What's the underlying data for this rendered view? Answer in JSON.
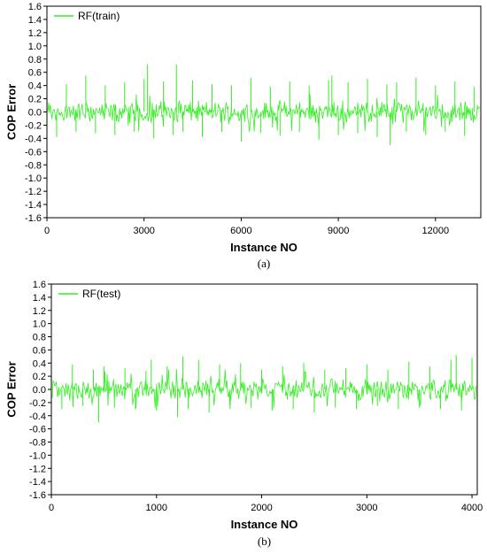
{
  "chart_data": [
    {
      "type": "line",
      "panel_label": "(a)",
      "xlabel": "Instance NO",
      "ylabel": "COP Error",
      "xlim": [
        0,
        13400
      ],
      "ylim": [
        -1.6,
        1.6
      ],
      "xticks": [
        0,
        3000,
        6000,
        9000,
        12000
      ],
      "xtick_labels": [
        "0",
        "3000",
        "6000",
        "9000",
        "12000"
      ],
      "yticks": [
        1.6,
        1.4,
        1.2,
        1.0,
        0.8,
        0.6,
        0.4,
        0.2,
        0.0,
        -0.2,
        -0.4,
        -0.6,
        -0.8,
        -1.0,
        -1.2,
        -1.4,
        -1.6
      ],
      "ytick_labels": [
        "1.6",
        "1.4",
        "1.2",
        "1.0",
        "0.8",
        "0.6",
        "0.4",
        "0.2",
        "0.0",
        "-0.2",
        "-0.4",
        "-0.6",
        "-0.8",
        "-1.0",
        "-1.2",
        "-1.4",
        "-1.6"
      ],
      "grid": false,
      "legend_position": "top-left",
      "color": "#33ee22",
      "series": [
        {
          "name": "RF(train)",
          "x": [
            0,
            300,
            600,
            900,
            1200,
            1500,
            1800,
            2100,
            2400,
            2700,
            3000,
            3100,
            3300,
            3600,
            3900,
            4000,
            4200,
            4500,
            4800,
            5100,
            5400,
            5700,
            6000,
            6300,
            6600,
            6900,
            7200,
            7500,
            7800,
            8100,
            8400,
            8700,
            8800,
            9000,
            9300,
            9600,
            9900,
            10200,
            10500,
            10600,
            10800,
            11100,
            11400,
            11700,
            12000,
            12300,
            12600,
            12900,
            13200,
            13400
          ],
          "values": [
            0.38,
            -0.38,
            0.42,
            -0.3,
            0.55,
            -0.32,
            0.4,
            -0.35,
            0.45,
            -0.3,
            0.5,
            0.72,
            -0.4,
            0.46,
            -0.35,
            0.72,
            -0.3,
            0.48,
            -0.38,
            0.42,
            -0.3,
            0.4,
            -0.45,
            0.52,
            -0.32,
            0.38,
            -0.36,
            0.46,
            -0.3,
            0.4,
            -0.42,
            0.48,
            0.55,
            -0.35,
            0.45,
            -0.32,
            0.5,
            -0.38,
            0.42,
            -0.5,
            0.45,
            -0.3,
            0.52,
            -0.35,
            0.4,
            -0.3,
            0.46,
            -0.36,
            0.38,
            -0.42
          ]
        }
      ]
    },
    {
      "type": "line",
      "panel_label": "(b)",
      "xlabel": "Instance NO",
      "ylabel": "COP Error",
      "xlim": [
        0,
        4050
      ],
      "ylim": [
        -1.6,
        1.6
      ],
      "xticks": [
        0,
        1000,
        2000,
        3000,
        4000
      ],
      "xtick_labels": [
        "0",
        "1000",
        "2000",
        "3000",
        "4000"
      ],
      "yticks": [
        1.6,
        1.4,
        1.2,
        1.0,
        0.8,
        0.6,
        0.4,
        0.2,
        0.0,
        -0.2,
        -0.4,
        -0.6,
        -0.8,
        -1.0,
        -1.2,
        -1.4,
        -1.6
      ],
      "ytick_labels": [
        "1.6",
        "1.4",
        "1.2",
        "1.0",
        "0.8",
        "0.6",
        "0.4",
        "0.2",
        "0.0",
        "-0.2",
        "-0.4",
        "-0.6",
        "-0.8",
        "-1.0",
        "-1.2",
        "-1.4",
        "-1.6"
      ],
      "grid": false,
      "legend_position": "top-left",
      "color": "#33ee22",
      "series": [
        {
          "name": "RF(test)",
          "x": [
            0,
            100,
            200,
            300,
            400,
            450,
            500,
            600,
            700,
            800,
            900,
            950,
            1000,
            1100,
            1200,
            1250,
            1300,
            1400,
            1500,
            1600,
            1700,
            1800,
            1900,
            2000,
            2100,
            2200,
            2300,
            2400,
            2500,
            2600,
            2700,
            2800,
            2900,
            3000,
            3100,
            3200,
            3300,
            3400,
            3500,
            3600,
            3700,
            3800,
            3850,
            3900,
            4000,
            4050
          ],
          "values": [
            0.4,
            -0.3,
            0.38,
            -0.25,
            0.3,
            -0.5,
            0.35,
            -0.28,
            0.32,
            -0.3,
            0.28,
            0.45,
            -0.32,
            0.35,
            -0.42,
            0.5,
            -0.3,
            0.45,
            -0.35,
            0.38,
            -0.3,
            0.4,
            -0.28,
            0.3,
            -0.32,
            0.35,
            -0.3,
            0.4,
            -0.35,
            0.3,
            -0.28,
            0.32,
            -0.3,
            0.38,
            -0.25,
            0.3,
            -0.3,
            0.42,
            -0.28,
            0.35,
            -0.3,
            0.45,
            0.52,
            -0.32,
            0.48,
            -0.3
          ]
        }
      ]
    }
  ]
}
